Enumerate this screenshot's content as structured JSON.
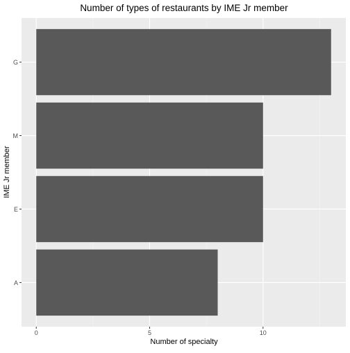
{
  "chart_data": {
    "type": "bar",
    "orientation": "horizontal",
    "title": "Number of types of restaurants by IME Jr member",
    "xlabel": "Number of specialty",
    "ylabel": "IME Jr member",
    "categories": [
      "A",
      "E",
      "M",
      "G"
    ],
    "values": [
      8,
      10,
      10,
      13
    ],
    "xlim": [
      -0.65,
      13.65
    ],
    "xticks": [
      0,
      5,
      10
    ],
    "grid": true,
    "legend": "none",
    "colors": {
      "bar": "#595959",
      "panel": "#ebebeb",
      "grid_major": "#ffffff",
      "grid_minor": "#f5f5f5",
      "text": "#000000",
      "tick_label": "#4d4d4d",
      "tick": "#333333"
    }
  }
}
